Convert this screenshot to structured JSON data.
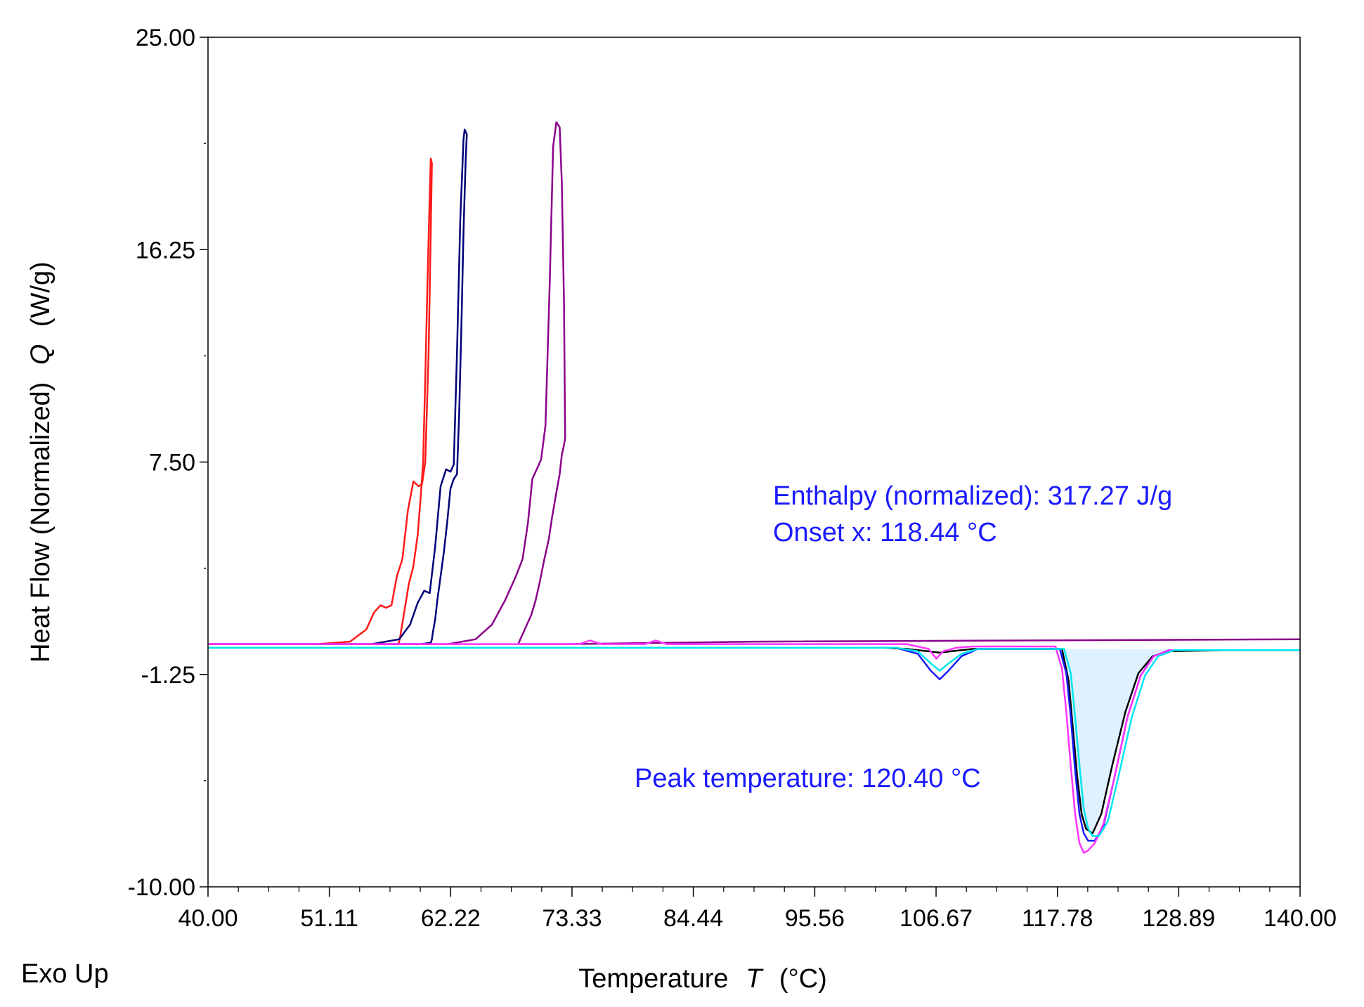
{
  "chart_data": {
    "type": "line",
    "title": "",
    "xlabel": "Temperature",
    "xlabel_symbol": "T",
    "xlabel_unit": "(°C)",
    "ylabel": "Heat Flow (Normalized)",
    "ylabel_symbol": "Q",
    "ylabel_unit": "(W/g)",
    "corner_label": "Exo Up",
    "xlim": [
      40.0,
      140.0
    ],
    "ylim": [
      -10.0,
      25.0
    ],
    "x_ticks": [
      "40.00",
      "51.11",
      "62.22",
      "73.33",
      "84.44",
      "95.56",
      "106.67",
      "117.78",
      "128.89",
      "140.00"
    ],
    "x_tick_values": [
      40.0,
      51.11,
      62.22,
      73.33,
      84.44,
      95.56,
      106.67,
      117.78,
      128.89,
      140.0
    ],
    "y_ticks": [
      "25.00",
      "16.25",
      "7.50",
      "-1.25",
      "-10.00"
    ],
    "y_tick_values": [
      25.0,
      16.25,
      7.5,
      -1.25,
      -10.0
    ],
    "y_minor_tick_values": [
      20.625,
      11.875,
      3.125,
      -5.625
    ],
    "series": [
      {
        "name": "red",
        "color": "#ff1a1a",
        "x": [
          40,
          50,
          53,
          54.5,
          55.2,
          55.8,
          56.3,
          56.8,
          57.3,
          57.8,
          58.3,
          58.8,
          59.3,
          59.6,
          59.9,
          60.2,
          60.4,
          60.5,
          60.4,
          60.3,
          60.1,
          59.9,
          59.7,
          59.5,
          59.2,
          58.8,
          58.4,
          58.0,
          57.7,
          57.6,
          57.5,
          57.4,
          57.0,
          56.5,
          40
        ],
        "y": [
          0.0,
          0.0,
          0.1,
          0.6,
          1.3,
          1.6,
          1.5,
          1.6,
          2.8,
          3.5,
          5.5,
          6.7,
          6.5,
          6.6,
          7.5,
          12.0,
          17.0,
          19.8,
          20.0,
          18.5,
          15.0,
          11.0,
          7.5,
          6.2,
          4.5,
          3.2,
          2.5,
          1.4,
          0.6,
          0.3,
          0.1,
          0.0,
          0.0,
          0.0,
          0.0
        ]
      },
      {
        "name": "navy",
        "color": "#00007a",
        "x": [
          40,
          55,
          57.5,
          58.5,
          59.2,
          59.8,
          60.3,
          60.8,
          61.3,
          61.8,
          62.2,
          62.5,
          62.8,
          63.1,
          63.4,
          63.5,
          63.7,
          63.6,
          63.4,
          63.2,
          63.0,
          62.8,
          62.5,
          62.2,
          61.9,
          61.6,
          61.3,
          61.0,
          60.8,
          60.6,
          60.5,
          60.4,
          59.5,
          40
        ],
        "y": [
          0.0,
          0.0,
          0.2,
          0.8,
          1.7,
          2.2,
          2.1,
          4.0,
          6.5,
          7.2,
          7.1,
          7.4,
          12.0,
          17.5,
          20.8,
          21.2,
          21.0,
          20.0,
          17.0,
          13.0,
          9.5,
          7.0,
          6.8,
          6.4,
          5.0,
          3.8,
          2.8,
          1.8,
          1.0,
          0.5,
          0.2,
          0.05,
          0.0,
          0.0
        ]
      },
      {
        "name": "purple",
        "color": "#8b008b",
        "x": [
          40,
          62,
          64.5,
          66.0,
          67.2,
          68.2,
          68.8,
          69.3,
          69.7,
          70.1,
          70.5,
          70.9,
          71.3,
          71.6,
          71.9,
          72.2,
          72.4,
          72.6,
          72.7,
          72.6,
          72.4,
          72.2,
          72.0,
          71.8,
          71.5,
          71.2,
          70.8,
          70.4,
          70.0,
          69.6,
          69.2,
          68.8,
          68.6,
          68.5,
          68.4,
          73,
          90,
          140
        ],
        "y": [
          0.0,
          0.0,
          0.2,
          0.8,
          1.8,
          2.8,
          3.5,
          5.0,
          6.8,
          7.2,
          7.6,
          9.0,
          15.0,
          20.5,
          21.5,
          21.3,
          19.0,
          14.0,
          8.5,
          8.2,
          7.8,
          7.0,
          6.5,
          6.0,
          5.2,
          4.3,
          3.5,
          2.6,
          1.8,
          1.2,
          0.8,
          0.4,
          0.2,
          0.1,
          0.0,
          0.0,
          0.1,
          0.2
        ]
      },
      {
        "name": "black",
        "color": "#000000",
        "x": [
          40,
          102,
          104,
          106,
          107,
          108,
          110,
          118.2,
          118.8,
          119.2,
          119.6,
          120.0,
          120.4,
          121.0,
          121.8,
          122.8,
          124.0,
          125.2,
          126.5,
          128.0,
          133,
          140
        ],
        "y": [
          -0.15,
          -0.15,
          -0.2,
          -0.3,
          -0.35,
          -0.3,
          -0.2,
          -0.2,
          -1.5,
          -3.5,
          -5.5,
          -7.0,
          -7.6,
          -7.8,
          -7.0,
          -5.0,
          -2.8,
          -1.2,
          -0.5,
          -0.3,
          -0.25,
          -0.25
        ]
      },
      {
        "name": "blue",
        "color": "#1a1aff",
        "x": [
          40,
          103,
          105,
          106.2,
          107.0,
          107.8,
          109.0,
          110.5,
          118.0,
          118.6,
          119.0,
          119.4,
          119.8,
          120.2,
          120.6,
          121.2,
          122.0,
          123.0,
          124.2,
          125.4,
          126.6,
          128.0,
          140
        ],
        "y": [
          -0.15,
          -0.15,
          -0.4,
          -1.1,
          -1.45,
          -1.1,
          -0.5,
          -0.2,
          -0.2,
          -1.2,
          -3.0,
          -5.2,
          -7.0,
          -7.8,
          -8.1,
          -8.1,
          -7.5,
          -5.5,
          -3.0,
          -1.3,
          -0.5,
          -0.25,
          -0.25
        ]
      },
      {
        "name": "magenta",
        "color": "#ff33ff",
        "x": [
          40,
          74,
          75,
          76,
          80,
          81,
          82,
          104,
          106,
          106.7,
          107.3,
          108.5,
          110,
          117.6,
          118.2,
          118.6,
          119.0,
          119.4,
          119.8,
          120.2,
          120.6,
          121.2,
          122.0,
          123.0,
          124.2,
          125.4,
          126.6,
          128.0,
          140
        ],
        "y": [
          0.0,
          0.0,
          0.15,
          0.0,
          0.0,
          0.15,
          0.0,
          0.0,
          -0.2,
          -0.6,
          -0.3,
          -0.15,
          -0.1,
          -0.1,
          -1.0,
          -2.8,
          -5.0,
          -7.0,
          -8.2,
          -8.6,
          -8.5,
          -8.2,
          -7.4,
          -5.5,
          -3.0,
          -1.3,
          -0.5,
          -0.25,
          -0.25
        ]
      },
      {
        "name": "cyan",
        "color": "#00e5ee",
        "x": [
          40,
          103,
          105,
          106.2,
          107.0,
          107.8,
          109.0,
          110.5,
          118.4,
          119.0,
          119.4,
          119.8,
          120.2,
          120.6,
          121.0,
          121.6,
          122.4,
          123.4,
          124.6,
          125.8,
          127.0,
          128.5,
          140
        ],
        "y": [
          -0.15,
          -0.15,
          -0.3,
          -0.8,
          -1.1,
          -0.8,
          -0.4,
          -0.2,
          -0.2,
          -1.2,
          -3.0,
          -5.0,
          -6.8,
          -7.6,
          -7.9,
          -7.9,
          -7.3,
          -5.4,
          -3.0,
          -1.3,
          -0.5,
          -0.25,
          -0.25
        ]
      }
    ],
    "shaded_peak": {
      "color": "#dff0ff",
      "x": [
        118.2,
        118.8,
        119.2,
        119.6,
        120.0,
        120.4,
        121.0,
        121.8,
        122.8,
        124.0,
        125.2,
        126.5,
        128.0
      ],
      "y": [
        -0.2,
        -1.5,
        -3.5,
        -5.5,
        -7.0,
        -7.6,
        -7.8,
        -7.0,
        -5.0,
        -2.8,
        -1.2,
        -0.5,
        -0.3
      ]
    },
    "annotations": [
      {
        "text": "Enthalpy (normalized): 317.27 J/g",
        "color": "#1a1aff"
      },
      {
        "text": "Onset x: 118.44 °C",
        "color": "#1a1aff"
      },
      {
        "text": "Peak temperature: 120.40 °C",
        "color": "#1a1aff"
      }
    ]
  }
}
